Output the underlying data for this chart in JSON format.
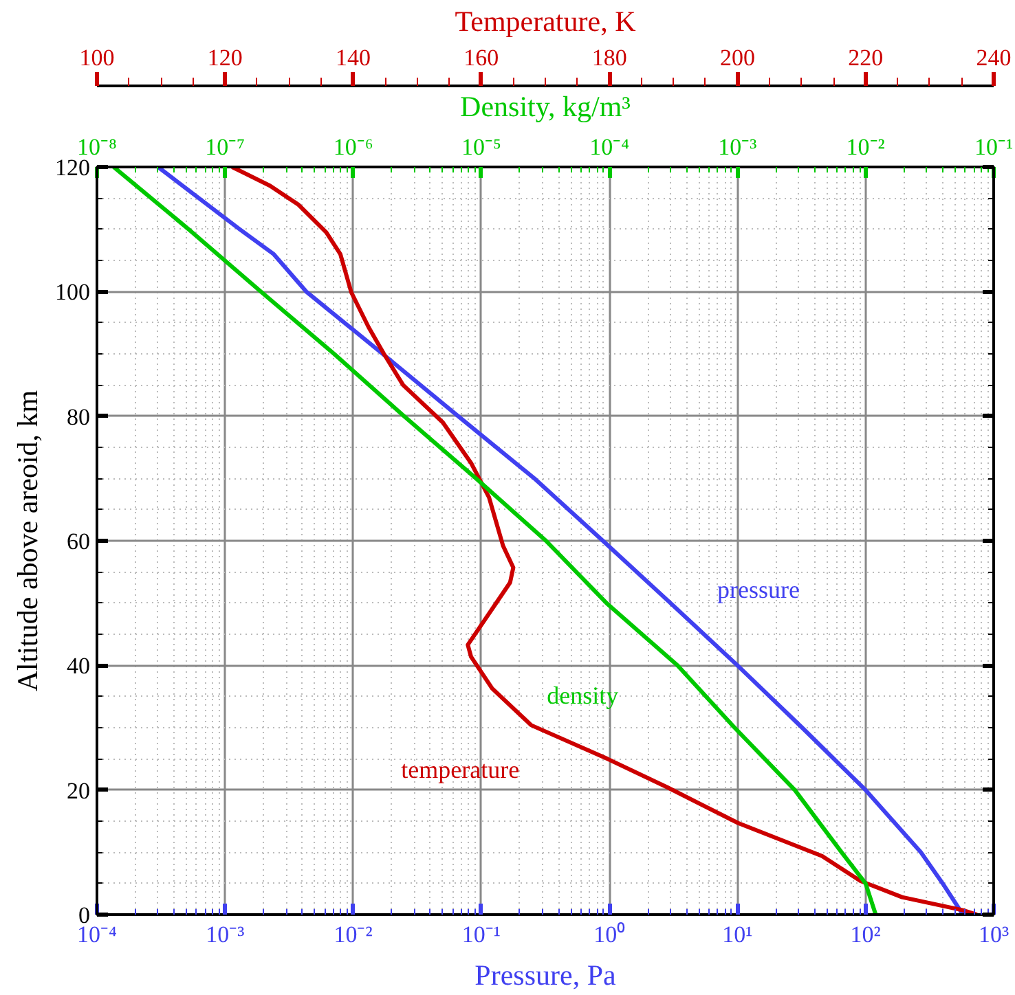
{
  "chart_data": [
    {
      "type": "line",
      "xlabel": "Pressure, Pa",
      "ylabel": "Altitude above areoid, km",
      "x2label": "Temperature, K",
      "log": "x",
      "grid": true,
      "marker": "none",
      "line_style": "solid",
      "xlim": [
        0.0001,
        1000
      ],
      "xticks": [
        {
          "value": 0.0001,
          "label": "10⁻⁴"
        },
        {
          "value": 0.001,
          "label": "10⁻³"
        },
        {
          "value": 0.01,
          "label": "10⁻²"
        },
        {
          "value": 0.1,
          "label": "10⁻¹"
        },
        {
          "value": 1,
          "label": "10⁰"
        },
        {
          "value": 10,
          "label": "10¹"
        },
        {
          "value": 100,
          "label": "10²"
        },
        {
          "value": 1000,
          "label": "10³"
        }
      ],
      "x2lim": [
        100,
        240
      ],
      "x2ticks": [
        100,
        120,
        140,
        160,
        180,
        200,
        220,
        240
      ],
      "ylim": [
        0,
        120
      ],
      "yticks": [
        0,
        20,
        40,
        60,
        80,
        100,
        120
      ],
      "series": [
        {
          "name": "pressure",
          "color": "#4040f0",
          "x": [
            575,
            400,
            270,
            100,
            32,
            10,
            3.0,
            0.89,
            0.26,
            0.066,
            0.017,
            0.0043,
            0.0024,
            0.0013,
            0.0003
          ],
          "values": [
            0,
            5,
            10,
            20,
            30,
            40,
            50,
            60,
            70,
            80,
            90,
            100,
            106,
            110,
            120
          ]
        },
        {
          "name": "temperature",
          "color": "#cc0000",
          "axis": "x2",
          "x": [
            237.4,
            235.2,
            225.7,
            219.2,
            213.2,
            200.1,
            189.1,
            179.7,
            167.8,
            161.7,
            158.4,
            157.9,
            164.5,
            165,
            163.4,
            161.2,
            158.4,
            154,
            147.8,
            144.8,
            142.4,
            139.7,
            138,
            135.8,
            131.4,
            127,
            121.1
          ],
          "values": [
            0,
            0.7,
            2.8,
            5.4,
            9.4,
            14.7,
            20.4,
            25,
            30.4,
            36.3,
            41.4,
            43.3,
            53.3,
            55.7,
            59.2,
            67,
            72.5,
            79,
            85,
            90,
            94.3,
            99.9,
            106,
            109.5,
            114,
            117,
            120
          ]
        }
      ]
    },
    {
      "type": "line",
      "xlabel": "Density, kg/m³",
      "log": "x",
      "tick_labels": "x",
      "marker": "none",
      "line_style": "solid",
      "xlim": [
        1e-08,
        0.1
      ],
      "xticks": [
        {
          "value": 1e-08,
          "label": "10⁻⁸"
        },
        {
          "value": 1e-07,
          "label": "10⁻⁷"
        },
        {
          "value": 1e-06,
          "label": "10⁻⁶"
        },
        {
          "value": 1e-05,
          "label": "10⁻⁵"
        },
        {
          "value": 0.0001,
          "label": "10⁻⁴"
        },
        {
          "value": 0.001,
          "label": "10⁻³"
        },
        {
          "value": 0.01,
          "label": "10⁻²"
        },
        {
          "value": 0.1,
          "label": "10⁻¹"
        }
      ],
      "ylim": [
        0,
        120
      ],
      "series": [
        {
          "name": "density",
          "color": "#00c800",
          "x": [
            0.012,
            0.01,
            0.0065,
            0.0028,
            0.00095,
            0.00034,
            9.5e-05,
            3.2e-05,
            9.1e-06,
            2.5e-06,
            7.1e-07,
            1.9e-07,
            5.2e-08,
            1.35e-08
          ],
          "values": [
            0,
            5,
            10,
            20,
            30,
            40,
            50,
            60,
            70,
            80,
            90,
            100,
            110,
            120
          ]
        }
      ]
    }
  ]
}
